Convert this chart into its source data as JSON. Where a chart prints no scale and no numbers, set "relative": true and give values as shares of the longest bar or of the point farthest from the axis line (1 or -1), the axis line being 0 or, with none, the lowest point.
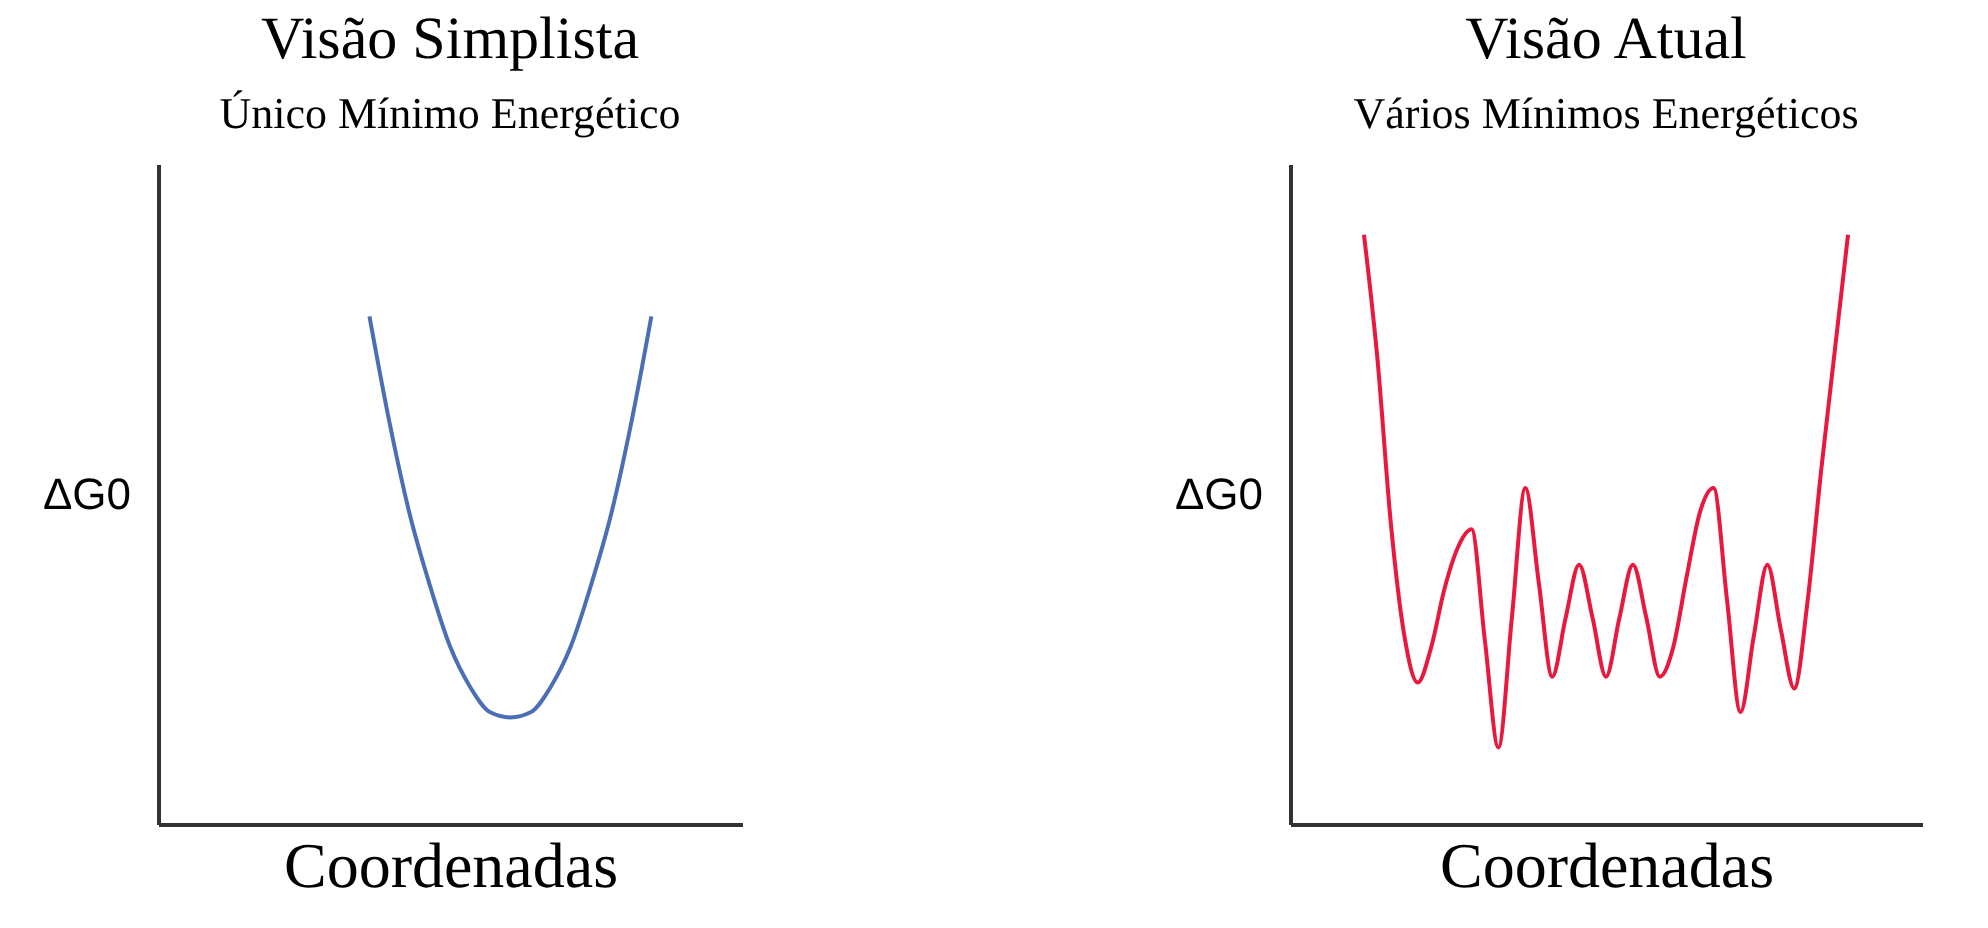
{
  "chart_data": [
    {
      "type": "line",
      "title": "Visão Simplista",
      "subtitle": "Único Mínimo Energético",
      "xlabel": "Coordenadas",
      "ylabel": "ΔG0",
      "relative": true,
      "grid": false,
      "categories": [
        null,
        null,
        null,
        null,
        null,
        null,
        null,
        null,
        null,
        null,
        null,
        null,
        null,
        null,
        null,
        null,
        null,
        null,
        null,
        null,
        null,
        null,
        null,
        null,
        null,
        null,
        null,
        null,
        null
      ],
      "series": [
        {
          "color": "#4a6fb5",
          "values": [
            null,
            null,
            null,
            null,
            null,
            null,
            null,
            null,
            null,
            null,
            1.0,
            0.79,
            0.61,
            0.47,
            0.35,
            0.27,
            0.22,
            0.21,
            0.22,
            0.27,
            0.35,
            0.47,
            0.61,
            0.79,
            1.0,
            null,
            null,
            null,
            null
          ]
        }
      ]
    },
    {
      "type": "line",
      "title": "Visão Atual",
      "subtitle": "Vários Mínimos Energéticos",
      "xlabel": "Coordenadas",
      "ylabel": "ΔG0",
      "relative": true,
      "grid": false,
      "categories": [
        null,
        null,
        null,
        null,
        null,
        null,
        null,
        null,
        null,
        null,
        null,
        null,
        null,
        null,
        null,
        null,
        null,
        null,
        null,
        null,
        null,
        null,
        null,
        null,
        null,
        null,
        null,
        null,
        null,
        null,
        null,
        null,
        null,
        null,
        null,
        null,
        null,
        null,
        null,
        null,
        null,
        null,
        null,
        null,
        null,
        null,
        null
      ],
      "series": [
        {
          "color": "#e8193c",
          "values": [
            null,
            null,
            null,
            null,
            null,
            1.0,
            0.79,
            0.51,
            0.32,
            0.24,
            0.3,
            0.4,
            0.47,
            0.5,
            0.31,
            0.13,
            0.35,
            0.57,
            0.41,
            0.25,
            0.35,
            0.44,
            0.35,
            0.25,
            0.35,
            0.44,
            0.35,
            0.25,
            0.3,
            0.42,
            0.53,
            0.57,
            0.38,
            0.19,
            0.32,
            0.44,
            0.33,
            0.23,
            0.38,
            0.6,
            0.8,
            1.0,
            null,
            null,
            null,
            null,
            null
          ]
        }
      ]
    }
  ]
}
